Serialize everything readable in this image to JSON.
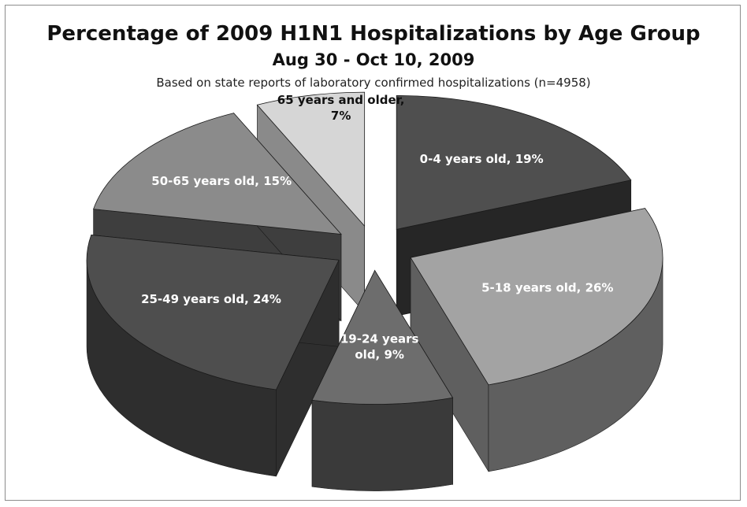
{
  "chart_data": {
    "type": "pie",
    "title": "Percentage of 2009 H1N1 Hospitalizations by Age Group",
    "subtitle": "Aug 30 - Oct 10, 2009",
    "note": "Based on state reports of laboratory confirmed hospitalizations (n=4958)",
    "categories": [
      "0-4 years old",
      "5-18 years old",
      "19-24 years old",
      "25-49 years old",
      "50-65 years old",
      "65 years and older"
    ],
    "values": [
      19,
      26,
      9,
      24,
      15,
      7
    ],
    "labels": [
      [
        "0-4 years old, 19%"
      ],
      [
        "5-18 years old, 26%"
      ],
      [
        "19-24 years",
        "old, 9%"
      ],
      [
        "25-49 years old, 24%"
      ],
      [
        "50-65 years old, 15%"
      ],
      [
        "65 years and older,",
        "7%"
      ]
    ],
    "colors": {
      "top": [
        "#4f4f4f",
        "#a3a3a3",
        "#6d6d6d",
        "#4e4e4e",
        "#8b8b8b",
        "#d6d6d6"
      ],
      "side": [
        "#262626",
        "#5f5f5f",
        "#3a3a3a",
        "#2e2e2e",
        "#3e3e3e",
        "#8a8a8a"
      ],
      "label": [
        "#ffffff",
        "#ffffff",
        "#ffffff",
        "#ffffff",
        "#ffffff",
        "#111111"
      ]
    },
    "style": "exploded 3d pie"
  }
}
